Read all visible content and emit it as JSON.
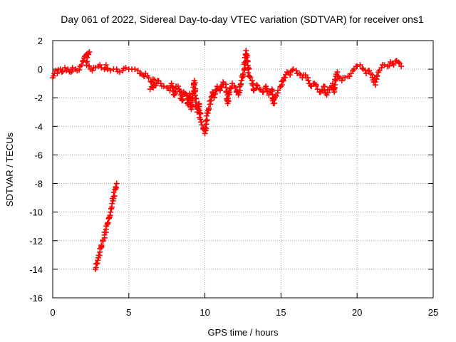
{
  "chart_data": {
    "type": "scatter",
    "title": "Day 061 of 2022, Sidereal Day-to-day VTEC variation (SDTVAR) for receiver ons1",
    "xlabel": "GPS time / hours",
    "ylabel": "SDTVAR / TECUs",
    "xlim": [
      0,
      25
    ],
    "ylim": [
      -16,
      2
    ],
    "xticks": [
      0,
      5,
      10,
      15,
      20,
      25
    ],
    "yticks": [
      2,
      0,
      -2,
      -4,
      -6,
      -8,
      -10,
      -12,
      -14,
      -16
    ],
    "grid": true,
    "marker": "plus",
    "series": [
      {
        "name": "ons1 SDTVAR (main)",
        "color": "#ff0000",
        "points": [
          [
            0.0,
            -0.6
          ],
          [
            0.1,
            -0.3
          ],
          [
            0.2,
            -0.1
          ],
          [
            0.3,
            -0.3
          ],
          [
            0.5,
            0.0
          ],
          [
            0.6,
            -0.2
          ],
          [
            0.8,
            0.1
          ],
          [
            0.9,
            -0.1
          ],
          [
            1.0,
            0.0
          ],
          [
            1.2,
            -0.2
          ],
          [
            1.3,
            0.1
          ],
          [
            1.5,
            0.0
          ],
          [
            1.6,
            -0.1
          ],
          [
            1.8,
            0.2
          ],
          [
            1.9,
            0.3
          ],
          [
            2.0,
            0.6
          ],
          [
            2.1,
            0.9
          ],
          [
            2.2,
            1.0
          ],
          [
            2.3,
            1.1
          ],
          [
            2.4,
            1.2
          ],
          [
            2.2,
            0.5
          ],
          [
            2.5,
            0.0
          ],
          [
            2.6,
            -0.1
          ],
          [
            2.8,
            0.1
          ],
          [
            3.0,
            0.2
          ],
          [
            3.1,
            0.3
          ],
          [
            3.2,
            0.1
          ],
          [
            3.4,
            0.0
          ],
          [
            3.5,
            0.3
          ],
          [
            3.6,
            0.0
          ],
          [
            3.8,
            -0.1
          ],
          [
            4.0,
            0.0
          ],
          [
            4.2,
            0.0
          ],
          [
            4.4,
            -0.2
          ],
          [
            4.6,
            -0.1
          ],
          [
            4.8,
            0.1
          ],
          [
            5.0,
            0.0
          ],
          [
            5.2,
            0.0
          ],
          [
            5.4,
            0.0
          ],
          [
            5.6,
            -0.1
          ],
          [
            5.8,
            -0.3
          ],
          [
            6.0,
            -0.5
          ],
          [
            6.1,
            -0.3
          ],
          [
            6.3,
            -0.6
          ],
          [
            6.5,
            -0.9
          ],
          [
            6.6,
            -0.7
          ],
          [
            6.8,
            -1.0
          ],
          [
            6.4,
            -1.4
          ],
          [
            6.6,
            -1.3
          ],
          [
            6.9,
            -0.8
          ],
          [
            7.1,
            -1.0
          ],
          [
            7.3,
            -1.2
          ],
          [
            7.5,
            -1.3
          ],
          [
            7.7,
            -1.5
          ],
          [
            7.8,
            -1.0
          ],
          [
            8.0,
            -1.8
          ],
          [
            8.1,
            -1.2
          ],
          [
            8.3,
            -1.4
          ],
          [
            8.5,
            -2.2
          ],
          [
            8.6,
            -1.6
          ],
          [
            8.8,
            -1.8
          ],
          [
            8.9,
            -2.5
          ],
          [
            9.0,
            -1.7
          ],
          [
            9.1,
            -2.8
          ],
          [
            9.2,
            -2.0
          ],
          [
            9.3,
            -0.8
          ],
          [
            9.4,
            -2.3
          ],
          [
            9.5,
            -3.0
          ],
          [
            9.6,
            -2.4
          ],
          [
            9.7,
            -3.5
          ],
          [
            9.8,
            -3.9
          ],
          [
            9.9,
            -4.2
          ],
          [
            10.0,
            -4.5
          ],
          [
            10.1,
            -3.6
          ],
          [
            10.2,
            -2.9
          ],
          [
            10.4,
            -2.2
          ],
          [
            10.5,
            -1.6
          ],
          [
            10.6,
            -2.0
          ],
          [
            10.8,
            -1.2
          ],
          [
            11.0,
            -1.5
          ],
          [
            11.2,
            -0.9
          ],
          [
            11.4,
            -1.3
          ],
          [
            11.5,
            -2.4
          ],
          [
            11.6,
            -1.6
          ],
          [
            11.8,
            -1.0
          ],
          [
            12.0,
            -1.3
          ],
          [
            12.2,
            -1.8
          ],
          [
            12.4,
            -0.8
          ],
          [
            12.6,
            0.0
          ],
          [
            12.7,
            1.3
          ],
          [
            12.8,
            0.6
          ],
          [
            12.9,
            -0.5
          ],
          [
            13.1,
            -0.8
          ],
          [
            13.2,
            -1.5
          ],
          [
            13.4,
            -1.1
          ],
          [
            13.6,
            -1.4
          ],
          [
            13.8,
            -1.6
          ],
          [
            14.0,
            -1.2
          ],
          [
            14.2,
            -1.8
          ],
          [
            14.4,
            -1.4
          ],
          [
            14.5,
            -2.4
          ],
          [
            14.6,
            -2.0
          ],
          [
            14.8,
            -1.5
          ],
          [
            15.0,
            -1.2
          ],
          [
            15.2,
            -0.6
          ],
          [
            15.4,
            -0.2
          ],
          [
            15.6,
            -0.4
          ],
          [
            15.8,
            0.0
          ],
          [
            16.0,
            -0.1
          ],
          [
            16.2,
            -0.3
          ],
          [
            16.4,
            -0.6
          ],
          [
            16.6,
            -0.4
          ],
          [
            16.8,
            -0.8
          ],
          [
            17.0,
            -1.2
          ],
          [
            17.2,
            -1.0
          ],
          [
            17.4,
            -1.4
          ],
          [
            17.6,
            -1.6
          ],
          [
            17.8,
            -1.2
          ],
          [
            18.0,
            -1.8
          ],
          [
            18.2,
            -1.3
          ],
          [
            18.4,
            -1.0
          ],
          [
            18.5,
            -1.6
          ],
          [
            18.6,
            -0.5
          ],
          [
            18.7,
            -0.2
          ],
          [
            18.8,
            -0.5
          ],
          [
            19.0,
            -0.8
          ],
          [
            19.2,
            -0.6
          ],
          [
            19.4,
            -0.5
          ],
          [
            19.6,
            -0.3
          ],
          [
            19.8,
            0.0
          ],
          [
            20.0,
            0.2
          ],
          [
            20.2,
            0.3
          ],
          [
            20.4,
            0.0
          ],
          [
            20.6,
            -0.3
          ],
          [
            20.8,
            -0.1
          ],
          [
            21.0,
            -0.4
          ],
          [
            21.1,
            -0.9
          ],
          [
            21.2,
            -1.1
          ],
          [
            21.3,
            -0.5
          ],
          [
            21.4,
            -0.2
          ],
          [
            21.6,
            0.1
          ],
          [
            21.8,
            0.3
          ],
          [
            22.0,
            0.2
          ],
          [
            22.2,
            0.5
          ],
          [
            22.4,
            0.3
          ],
          [
            22.6,
            0.6
          ],
          [
            22.8,
            0.4
          ],
          [
            22.9,
            0.2
          ]
        ]
      },
      {
        "name": "ons1 SDTVAR (segment 2)",
        "color": "#ff0000",
        "points": [
          [
            2.8,
            -14.0
          ],
          [
            2.9,
            -13.6
          ],
          [
            3.0,
            -13.2
          ],
          [
            3.1,
            -12.8
          ],
          [
            3.2,
            -12.4
          ],
          [
            3.3,
            -12.0
          ],
          [
            3.4,
            -11.6
          ],
          [
            3.5,
            -11.2
          ],
          [
            3.6,
            -10.8
          ],
          [
            3.7,
            -10.4
          ],
          [
            3.8,
            -10.0
          ],
          [
            3.9,
            -9.4
          ],
          [
            4.0,
            -8.9
          ],
          [
            4.1,
            -8.4
          ],
          [
            4.2,
            -8.0
          ]
        ]
      }
    ]
  }
}
